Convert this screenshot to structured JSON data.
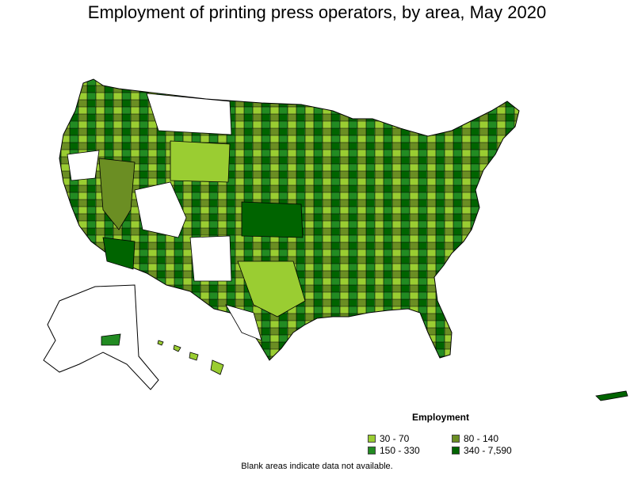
{
  "title": "Employment of printing press operators, by area, May 2020",
  "legend": {
    "title": "Employment",
    "items": [
      {
        "label": "30 - 70",
        "color": "#9acd32"
      },
      {
        "label": "80 - 140",
        "color": "#6b8e23"
      },
      {
        "label": "150 - 330",
        "color": "#228b22"
      },
      {
        "label": "340 - 7,590",
        "color": "#006400"
      }
    ]
  },
  "footnote": "Blank areas indicate data not available.",
  "colors": {
    "blank": "#ffffff",
    "border": "#000000"
  }
}
